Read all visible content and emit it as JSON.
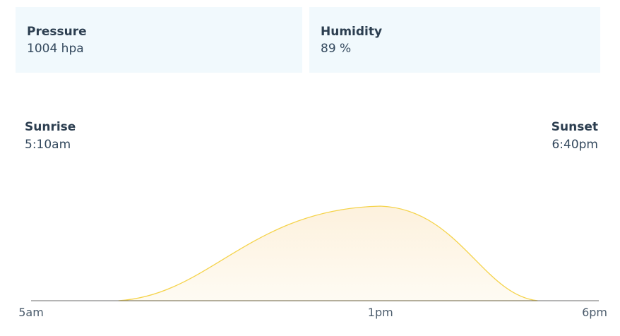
{
  "cards": {
    "pressure": {
      "label": "Pressure",
      "value": "1004 hpa"
    },
    "humidity": {
      "label": "Humidity",
      "value": "89 %"
    }
  },
  "sun": {
    "sunrise": {
      "label": "Sunrise",
      "time": "5:10am"
    },
    "sunset": {
      "label": "Sunset",
      "time": "6:40pm"
    }
  },
  "colors": {
    "card_bg": "#f1f9fd",
    "curve_stroke": "#f5d34a",
    "curve_fill_top": "#fdf1dd",
    "curve_fill_bottom": "#fefbf3",
    "baseline": "#6b6b6b"
  },
  "chart_data": {
    "type": "area",
    "x_ticks": [
      {
        "label": "5am",
        "hour": 5
      },
      {
        "label": "1pm",
        "hour": 13
      },
      {
        "label": "6pm",
        "hour": 18
      }
    ],
    "xlim": [
      5,
      18
    ],
    "series": [
      {
        "x": [
          7.0,
          13.0,
          16.6
        ],
        "y": [
          0,
          1,
          0
        ]
      }
    ]
  }
}
